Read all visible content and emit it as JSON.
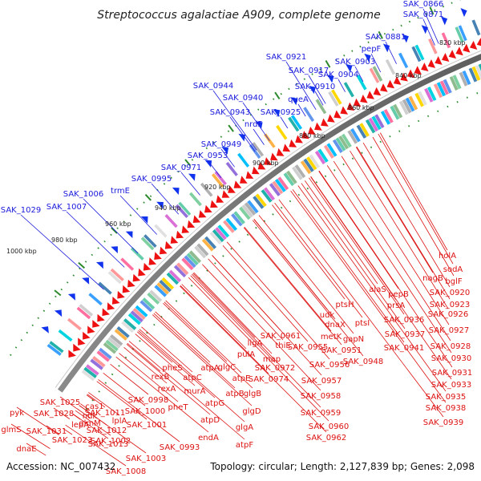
{
  "title": "Streptococcus agalactiae A909, complete genome",
  "footer": {
    "accession": "Accession: NC_007432",
    "summary": "Topology: circular; Length: 2,127,839 bp; Genes: 2,098"
  },
  "colors": {
    "forward_labels": "#1a1adc",
    "reverse_labels": "#dd1111",
    "ring": "#6e6e6e",
    "ticks": "#2c8a2c"
  },
  "ticks": [
    "1000 kbp",
    "980 kbp",
    "960 kbp",
    "940 kbp",
    "920 kbp",
    "900 kbp",
    "880 kbp",
    "860 kbp",
    "840 kbp",
    "820 kbp"
  ],
  "forward_labels": [
    "SAK_0866",
    "SAK_0871",
    "SAK_0881",
    "pepF",
    "SAK_0921",
    "SAK_0903",
    "SAK_0917",
    "SAK_0904",
    "queA",
    "SAK_0910",
    "SAK_0944",
    "SAK_0940",
    "SAK_0943",
    "SAK_0925",
    "nrdF",
    "SAK_0949",
    "SAK_0953",
    "SAK_0971",
    "SAK_0995",
    "trmE",
    "SAK_1006",
    "SAK_1007",
    "SAK_1029"
  ],
  "reverse_labels": [
    "holA",
    "sodA",
    "nagB",
    "bglF",
    "SAK_0920",
    "alaS",
    "pepB",
    "SAK_0923",
    "ptsH",
    "prsA",
    "SAK_0926",
    "udk",
    "SAK_0936",
    "dnaX",
    "ptsI",
    "SAK_0927",
    "metK",
    "SAK_0937",
    "SAK_0961",
    "gapN",
    "SAK_0941",
    "SAK_0928",
    "ligA",
    "thiE",
    "SAK_0955",
    "SAK_0951",
    "SAK_0930",
    "map",
    "pulA",
    "SAK_0972",
    "SAK_0956",
    "SAK_0948",
    "atpA",
    "glgC",
    "SAK_0974",
    "SAK_0931",
    "pheS",
    "atpC",
    "atpE",
    "glgB",
    "SAK_0957",
    "SAK_0933",
    "rexB",
    "murA",
    "atpB",
    "SAK_0958",
    "SAK_0935",
    "rexA",
    "atpG",
    "glgD",
    "SAK_0938",
    "SAK_0998",
    "pheT",
    "SAK_0959",
    "SAK_0939",
    "SAK_1000",
    "atpD",
    "lplA",
    "glgA",
    "SAK_0960",
    "SAK_1001",
    "endA",
    "SAK_0962",
    "glmM",
    "SAK_1011",
    "SAK_0993",
    "atpF",
    "SAK_1002",
    "SAK_1012",
    "SAK_1003",
    "SAK_1013",
    "SAK_1008",
    "cas1",
    "SAK_1025",
    "ndk",
    "pyk",
    "SAK_1028",
    "lepA",
    "glmS",
    "SAK_1031",
    "dnaE",
    "SAK_1023"
  ]
}
